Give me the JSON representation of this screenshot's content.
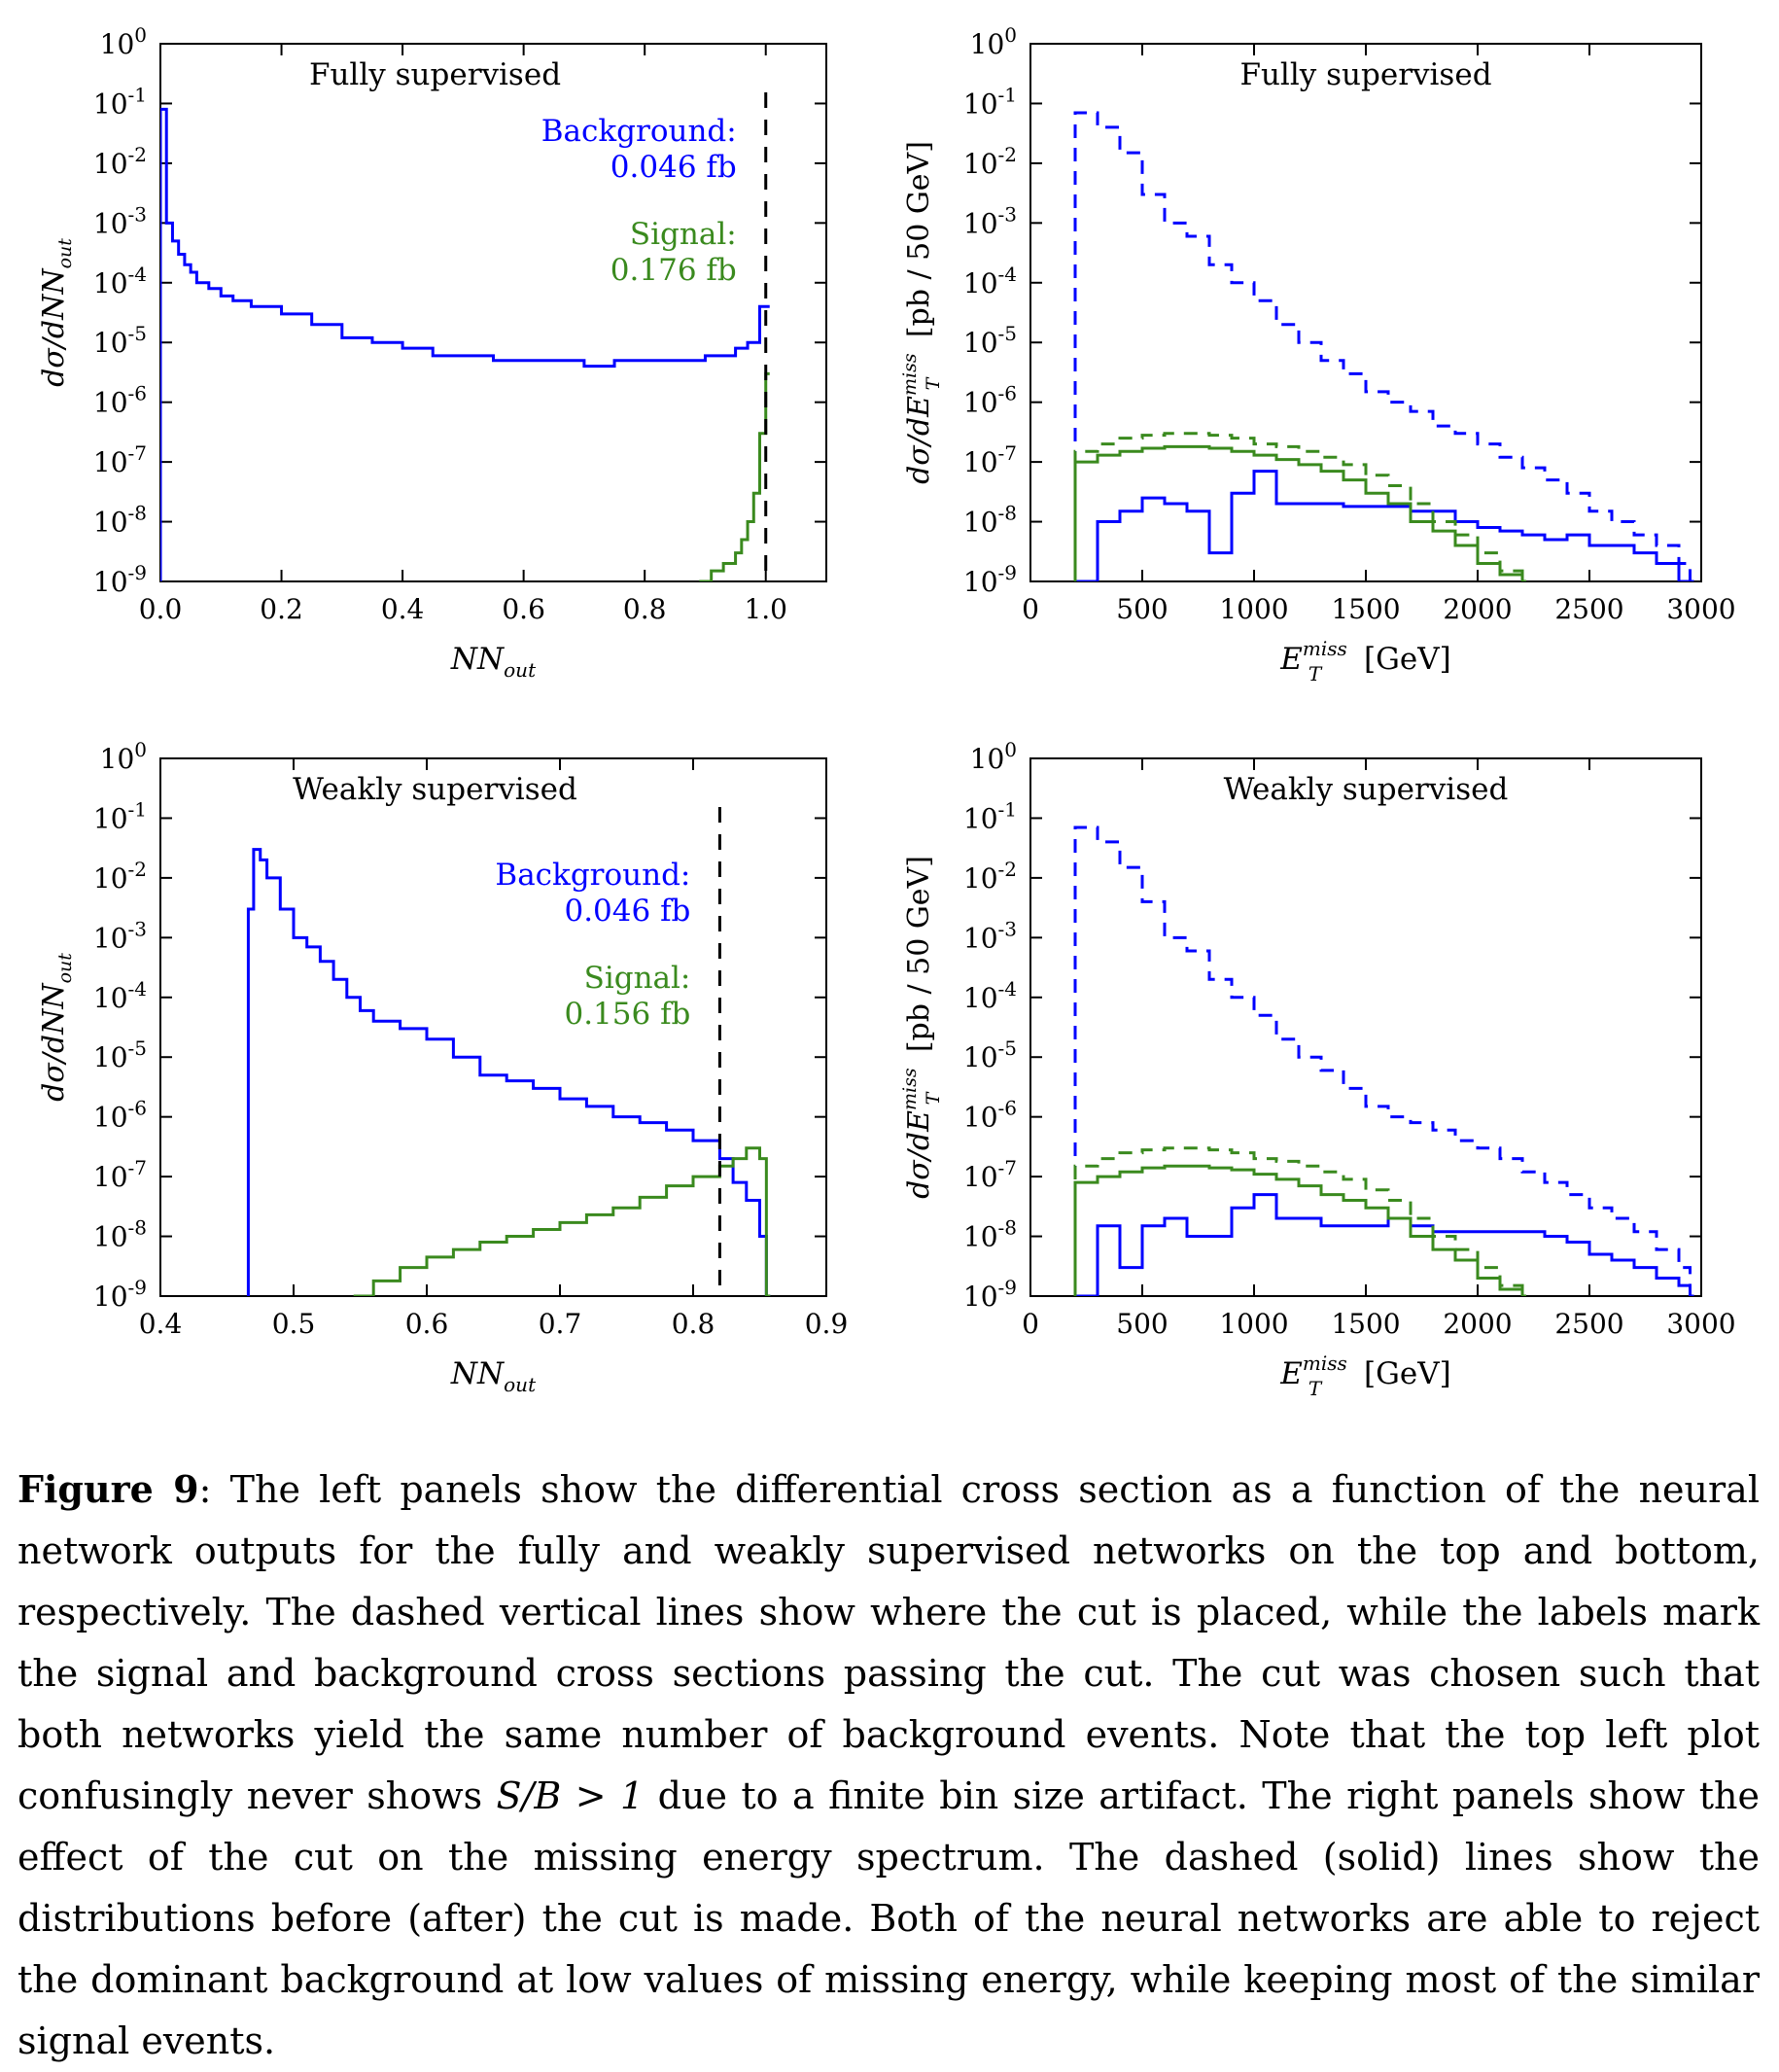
{
  "figure": {
    "caption": {
      "label": "Figure 9",
      "text": ": The left panels show the differential cross section as a function of the neural network outputs for the fully and weakly supervised networks on the top and bottom, respectively. The dashed vertical lines show where the cut is placed, while the labels mark the signal and background cross sections passing the cut. The cut was chosen such that both networks yield the same number of background events. Note that the top left plot confusingly never shows ",
      "math": "S/B > 1",
      "text_after": " due to a finite bin size artifact. The right panels show the effect of the cut on the missing energy spectrum. The dashed (solid) lines show the distributions before (after) the cut is made. Both of the neural networks are able to reject the dominant background at low values of missing energy, while keeping most of the similar signal events."
    }
  },
  "colors": {
    "background": "#0000ff",
    "signal": "#3a8a1e",
    "cut": "#000000"
  },
  "chart_data": [
    {
      "type": "line",
      "title": "Fully supervised",
      "xlabel": "NN_out",
      "ylabel": "dσ/dNN_out",
      "xlim": [
        0.0,
        1.1
      ],
      "ylim": [
        1e-09,
        1
      ],
      "yscale": "log",
      "xticks": [
        "0.0",
        "0.2",
        "0.4",
        "0.6",
        "0.8",
        "1.0"
      ],
      "yticks": [
        "10^0",
        "10^-1",
        "10^-2",
        "10^-3",
        "10^-4",
        "10^-5",
        "10^-6",
        "10^-7",
        "10^-8",
        "10^-9"
      ],
      "cut": 1.0,
      "annotations": [
        {
          "label": "Background:",
          "value": "0.046 fb",
          "series": "background"
        },
        {
          "label": "Signal:",
          "value": "0.176 fb",
          "series": "signal"
        }
      ],
      "series": [
        {
          "key": "background",
          "style": "solid",
          "x": [
            0.0,
            0.01,
            0.02,
            0.03,
            0.04,
            0.05,
            0.06,
            0.08,
            0.1,
            0.12,
            0.15,
            0.2,
            0.25,
            0.3,
            0.35,
            0.4,
            0.45,
            0.5,
            0.55,
            0.6,
            0.65,
            0.7,
            0.75,
            0.8,
            0.85,
            0.9,
            0.95,
            0.97,
            0.99,
            1.0
          ],
          "y": [
            0.08,
            0.001,
            0.0005,
            0.0003,
            0.0002,
            0.00015,
            0.0001,
            8e-05,
            6e-05,
            5e-05,
            4e-05,
            3e-05,
            2e-05,
            1.2e-05,
            1e-05,
            8e-06,
            6e-06,
            6e-06,
            5e-06,
            5e-06,
            5e-06,
            4e-06,
            5e-06,
            5e-06,
            5e-06,
            6e-06,
            8e-06,
            1e-05,
            4e-05,
            4e-05
          ]
        },
        {
          "key": "signal",
          "style": "solid",
          "x": [
            0.89,
            0.91,
            0.93,
            0.95,
            0.96,
            0.97,
            0.98,
            0.99,
            1.0
          ],
          "y": [
            1e-09,
            1.5e-09,
            2e-09,
            3e-09,
            5e-09,
            1e-08,
            3e-08,
            3e-07,
            3e-06
          ]
        }
      ]
    },
    {
      "type": "line",
      "title": "Fully supervised",
      "xlabel": "E_T^miss [GeV]",
      "ylabel": "dσ/dE_T^miss [pb / 50 GeV]",
      "xlim": [
        0,
        3000
      ],
      "ylim": [
        1e-09,
        1
      ],
      "yscale": "log",
      "xticks": [
        "0",
        "500",
        "1000",
        "1500",
        "2000",
        "2500",
        "3000"
      ],
      "yticks": [
        "10^0",
        "10^-1",
        "10^-2",
        "10^-3",
        "10^-4",
        "10^-5",
        "10^-6",
        "10^-7",
        "10^-8",
        "10^-9"
      ],
      "series": [
        {
          "key": "background",
          "style": "dashed",
          "x": [
            200,
            300,
            400,
            500,
            600,
            700,
            800,
            900,
            1000,
            1100,
            1200,
            1300,
            1400,
            1500,
            1600,
            1700,
            1800,
            1900,
            2000,
            2100,
            2200,
            2300,
            2400,
            2500,
            2600,
            2700,
            2800,
            2900,
            2950
          ],
          "y": [
            0.07,
            0.04,
            0.015,
            0.003,
            0.001,
            0.0006,
            0.0002,
            0.0001,
            5e-05,
            2e-05,
            1e-05,
            5e-06,
            3e-06,
            1.5e-06,
            1e-06,
            7e-07,
            4e-07,
            3e-07,
            2e-07,
            1.2e-07,
            8e-08,
            5e-08,
            3e-08,
            1.5e-08,
            1e-08,
            6e-09,
            4e-09,
            2e-09,
            1e-09
          ]
        },
        {
          "key": "background",
          "style": "solid",
          "x": [
            200,
            300,
            400,
            500,
            600,
            700,
            800,
            900,
            1000,
            1100,
            1200,
            1300,
            1400,
            1500,
            1600,
            1700,
            1800,
            1900,
            2000,
            2100,
            2200,
            2300,
            2400,
            2500,
            2600,
            2700,
            2800,
            2900,
            2950
          ],
          "y": [
            1e-09,
            1e-08,
            1.5e-08,
            2.5e-08,
            2e-08,
            1.5e-08,
            3e-09,
            3e-08,
            7e-08,
            2e-08,
            2e-08,
            2e-08,
            1.8e-08,
            1.8e-08,
            1.8e-08,
            1.5e-08,
            1.5e-08,
            1e-08,
            8e-09,
            7e-09,
            6e-09,
            5e-09,
            6e-09,
            4e-09,
            4e-09,
            3e-09,
            2e-09,
            1e-09,
            1e-09
          ]
        },
        {
          "key": "signal",
          "style": "dashed",
          "x": [
            200,
            300,
            400,
            500,
            600,
            700,
            800,
            900,
            1000,
            1100,
            1200,
            1300,
            1400,
            1500,
            1600,
            1700,
            1800,
            1900,
            2000,
            2100,
            2200
          ],
          "y": [
            1.5e-07,
            2e-07,
            2.5e-07,
            2.8e-07,
            3e-07,
            3e-07,
            2.8e-07,
            2.5e-07,
            2e-07,
            1.8e-07,
            1.5e-07,
            1.2e-07,
            9e-08,
            6e-08,
            4e-08,
            2e-08,
            1e-08,
            6e-09,
            3e-09,
            1.5e-09,
            1e-09
          ]
        },
        {
          "key": "signal",
          "style": "solid",
          "x": [
            200,
            300,
            400,
            500,
            600,
            700,
            800,
            900,
            1000,
            1100,
            1200,
            1300,
            1400,
            1500,
            1600,
            1700,
            1800,
            1900,
            2000,
            2100,
            2200
          ],
          "y": [
            1e-07,
            1.3e-07,
            1.5e-07,
            1.7e-07,
            1.8e-07,
            1.8e-07,
            1.7e-07,
            1.5e-07,
            1.3e-07,
            1.1e-07,
            9e-08,
            7e-08,
            5e-08,
            3e-08,
            2e-08,
            1e-08,
            7e-09,
            4e-09,
            2e-09,
            1.3e-09,
            1e-09
          ]
        }
      ]
    },
    {
      "type": "line",
      "title": "Weakly supervised",
      "xlabel": "NN_out",
      "ylabel": "dσ/dNN_out",
      "xlim": [
        0.4,
        0.9
      ],
      "ylim": [
        1e-09,
        1
      ],
      "yscale": "log",
      "xticks": [
        "0.4",
        "0.5",
        "0.6",
        "0.7",
        "0.8",
        "0.9"
      ],
      "yticks": [
        "10^0",
        "10^-1",
        "10^-2",
        "10^-3",
        "10^-4",
        "10^-5",
        "10^-6",
        "10^-7",
        "10^-8",
        "10^-9"
      ],
      "cut": 0.82,
      "annotations": [
        {
          "label": "Background:",
          "value": "0.046 fb",
          "series": "background"
        },
        {
          "label": "Signal:",
          "value": "0.156 fb",
          "series": "signal"
        }
      ],
      "series": [
        {
          "key": "background",
          "style": "solid",
          "x": [
            0.465,
            0.466,
            0.47,
            0.475,
            0.48,
            0.49,
            0.5,
            0.51,
            0.52,
            0.53,
            0.54,
            0.55,
            0.56,
            0.58,
            0.6,
            0.62,
            0.64,
            0.66,
            0.68,
            0.7,
            0.72,
            0.74,
            0.76,
            0.78,
            0.8,
            0.82,
            0.83,
            0.84,
            0.85,
            0.855
          ],
          "y": [
            1e-09,
            0.003,
            0.03,
            0.02,
            0.01,
            0.003,
            0.001,
            0.0007,
            0.0004,
            0.0002,
            0.0001,
            6e-05,
            4e-05,
            3e-05,
            2e-05,
            1e-05,
            5e-06,
            4e-06,
            3e-06,
            2e-06,
            1.5e-06,
            1e-06,
            8e-07,
            6e-07,
            4e-07,
            2e-07,
            8e-08,
            4e-08,
            1e-08,
            1e-09
          ]
        },
        {
          "key": "signal",
          "style": "solid",
          "x": [
            0.545,
            0.56,
            0.58,
            0.6,
            0.62,
            0.64,
            0.66,
            0.68,
            0.7,
            0.72,
            0.74,
            0.76,
            0.78,
            0.8,
            0.82,
            0.83,
            0.84,
            0.85,
            0.855
          ],
          "y": [
            1e-09,
            1.8e-09,
            3e-09,
            4.5e-09,
            6e-09,
            8e-09,
            1e-08,
            1.3e-08,
            1.7e-08,
            2.3e-08,
            3e-08,
            4.5e-08,
            7e-08,
            1e-07,
            1.5e-07,
            2e-07,
            3e-07,
            2e-07,
            1e-09
          ]
        }
      ]
    },
    {
      "type": "line",
      "title": "Weakly supervised",
      "xlabel": "E_T^miss [GeV]",
      "ylabel": "dσ/dE_T^miss [pb / 50 GeV]",
      "xlim": [
        0,
        3000
      ],
      "ylim": [
        1e-09,
        1
      ],
      "yscale": "log",
      "xticks": [
        "0",
        "500",
        "1000",
        "1500",
        "2000",
        "2500",
        "3000"
      ],
      "yticks": [
        "10^0",
        "10^-1",
        "10^-2",
        "10^-3",
        "10^-4",
        "10^-5",
        "10^-6",
        "10^-7",
        "10^-8",
        "10^-9"
      ],
      "series": [
        {
          "key": "background",
          "style": "dashed",
          "x": [
            200,
            300,
            400,
            500,
            600,
            700,
            800,
            900,
            1000,
            1100,
            1200,
            1300,
            1400,
            1500,
            1600,
            1700,
            1800,
            1900,
            2000,
            2100,
            2200,
            2300,
            2400,
            2500,
            2600,
            2700,
            2800,
            2900,
            2950
          ],
          "y": [
            0.07,
            0.04,
            0.015,
            0.004,
            0.001,
            0.0006,
            0.0002,
            0.0001,
            5e-05,
            2e-05,
            1e-05,
            6e-06,
            3e-06,
            1.5e-06,
            1e-06,
            8e-07,
            6e-07,
            4e-07,
            3e-07,
            2e-07,
            1.2e-07,
            8e-08,
            5e-08,
            3e-08,
            2e-08,
            1.2e-08,
            6e-09,
            3e-09,
            1e-09
          ]
        },
        {
          "key": "background",
          "style": "solid",
          "x": [
            200,
            300,
            400,
            500,
            600,
            700,
            800,
            900,
            1000,
            1100,
            1200,
            1300,
            1400,
            1500,
            1600,
            1700,
            1800,
            1900,
            2000,
            2100,
            2200,
            2300,
            2400,
            2500,
            2600,
            2700,
            2800,
            2900,
            2950
          ],
          "y": [
            1e-09,
            1.5e-08,
            3e-09,
            1.5e-08,
            2e-08,
            1e-08,
            1e-08,
            3e-08,
            5e-08,
            2e-08,
            2e-08,
            1.5e-08,
            1.5e-08,
            1.5e-08,
            2e-08,
            1.5e-08,
            1.2e-08,
            1.2e-08,
            1.2e-08,
            1.2e-08,
            1.2e-08,
            1e-08,
            8e-09,
            5e-09,
            4e-09,
            3e-09,
            2e-09,
            1.5e-09,
            1e-09
          ]
        },
        {
          "key": "signal",
          "style": "dashed",
          "x": [
            200,
            300,
            400,
            500,
            600,
            700,
            800,
            900,
            1000,
            1100,
            1200,
            1300,
            1400,
            1500,
            1600,
            1700,
            1800,
            1900,
            2000,
            2100,
            2200
          ],
          "y": [
            1.5e-07,
            2e-07,
            2.5e-07,
            2.8e-07,
            3e-07,
            3e-07,
            2.8e-07,
            2.5e-07,
            2e-07,
            1.8e-07,
            1.5e-07,
            1.2e-07,
            9e-08,
            6e-08,
            4e-08,
            2e-08,
            1e-08,
            6e-09,
            3e-09,
            1.5e-09,
            1e-09
          ]
        },
        {
          "key": "signal",
          "style": "solid",
          "x": [
            200,
            300,
            400,
            500,
            600,
            700,
            800,
            900,
            1000,
            1100,
            1200,
            1300,
            1400,
            1500,
            1600,
            1700,
            1800,
            1900,
            2000,
            2100,
            2200
          ],
          "y": [
            8e-08,
            1e-07,
            1.2e-07,
            1.4e-07,
            1.5e-07,
            1.5e-07,
            1.4e-07,
            1.3e-07,
            1.1e-07,
            9e-08,
            7e-08,
            5e-08,
            4e-08,
            3e-08,
            2e-08,
            1e-08,
            6e-09,
            4e-09,
            2e-09,
            1.3e-09,
            1e-09
          ]
        }
      ]
    }
  ]
}
